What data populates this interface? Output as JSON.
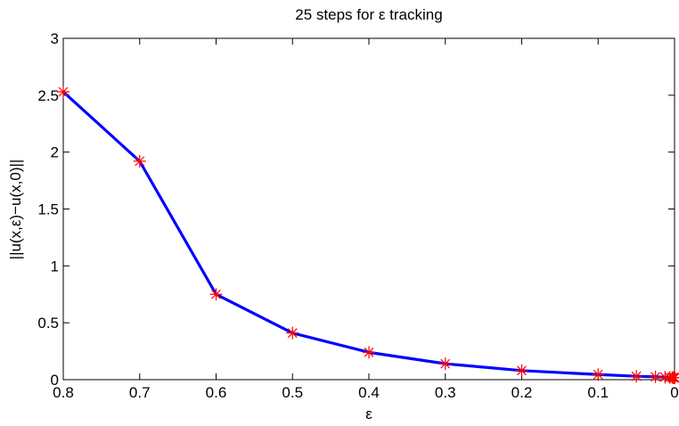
{
  "chart_data": {
    "type": "line",
    "title": "25 steps for ε tracking",
    "xlabel": "ε",
    "ylabel": "||u(x,ε)−u(x,0)||",
    "xlim": [
      0.8,
      0
    ],
    "ylim": [
      0,
      3
    ],
    "x_reversed": true,
    "x_ticks": [
      0.8,
      0.7,
      0.6,
      0.5,
      0.4,
      0.3,
      0.2,
      0.1,
      0
    ],
    "x_tick_labels": [
      "0.8",
      "0.7",
      "0.6",
      "0.5",
      "0.4",
      "0.3",
      "0.2",
      "0.1",
      "0"
    ],
    "y_ticks": [
      0,
      0.5,
      1,
      1.5,
      2,
      2.5,
      3
    ],
    "y_tick_labels": [
      "0",
      "0.5",
      "1",
      "1.5",
      "2",
      "2.5",
      "3"
    ],
    "grid": false,
    "series": [
      {
        "line_color": "#0000ff",
        "marker": "asterisk",
        "marker_color": "#ff0000",
        "x": [
          0.8,
          0.7,
          0.6,
          0.5,
          0.4,
          0.3,
          0.2,
          0.1,
          0.05,
          0.025,
          0.0125,
          0.00625,
          0.003125,
          0.0015625,
          0.00078125,
          0.000390625,
          0.0001953125,
          9.765625e-05,
          4.8828125e-05,
          2.44140625e-05,
          1.220703125e-05,
          6.103515625e-06,
          3.0517578125e-06,
          1.52587890625e-06,
          7.62939453125e-07
        ],
        "y": [
          2.53,
          1.92,
          0.75,
          0.41,
          0.24,
          0.14,
          0.08,
          0.045,
          0.03,
          0.025,
          0.022,
          0.02,
          0.019,
          0.018,
          0.018,
          0.017,
          0.017,
          0.017,
          0.017,
          0.017,
          0.017,
          0.017,
          0.017,
          0.017,
          0.017
        ]
      }
    ]
  }
}
